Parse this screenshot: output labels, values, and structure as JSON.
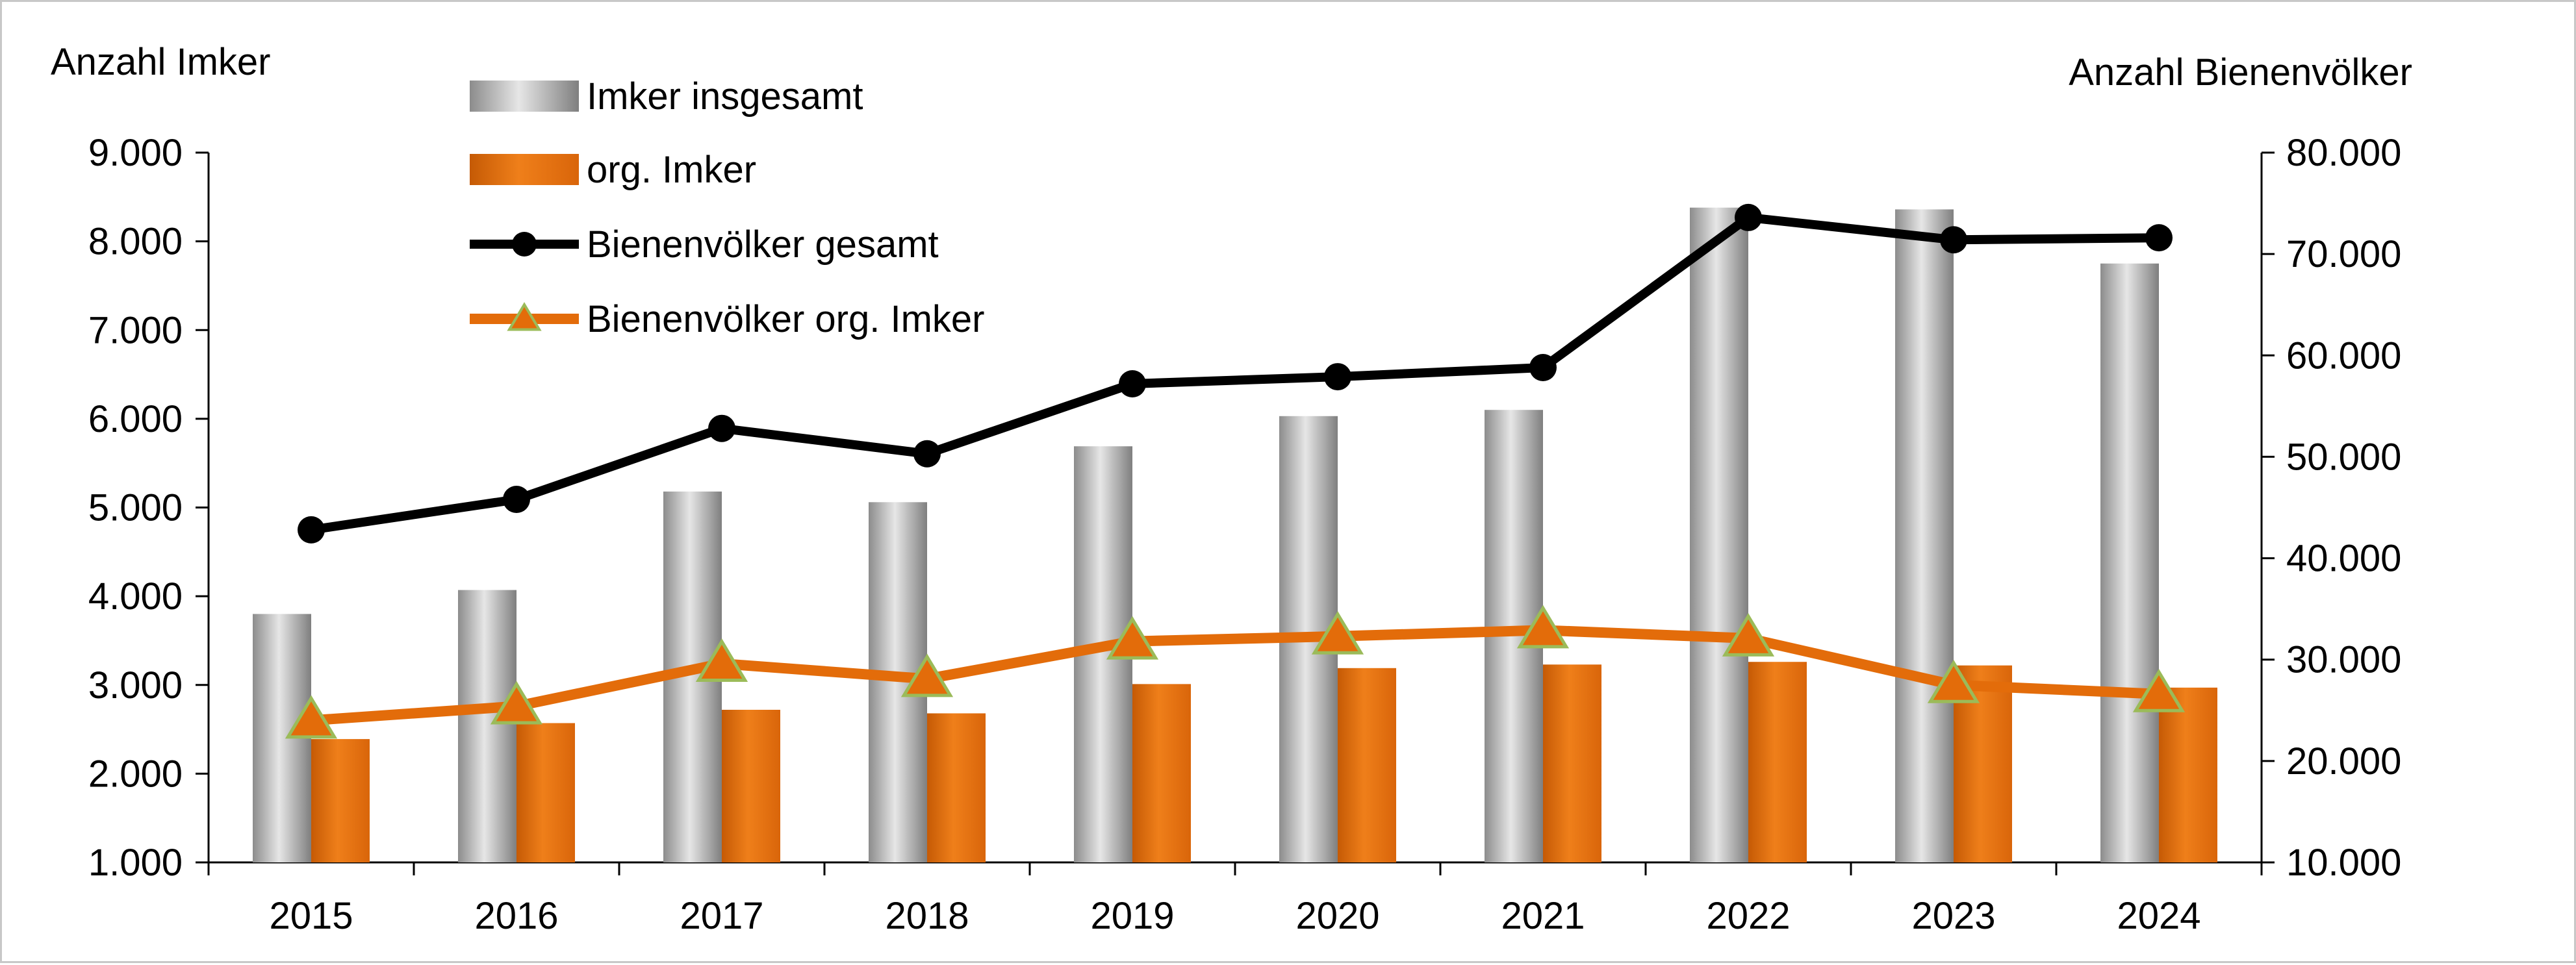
{
  "chart_data": {
    "type": "bar",
    "categories": [
      "2015",
      "2016",
      "2017",
      "2018",
      "2019",
      "2020",
      "2021",
      "2022",
      "2023",
      "2024"
    ],
    "ylabel_left": "Anzahl Imker",
    "ylabel_right": "Anzahl Bienenvölker",
    "ylim_left": [
      1000,
      9000
    ],
    "ylim_right": [
      10000,
      80000
    ],
    "yticks_left": [
      "1.000",
      "2.000",
      "3.000",
      "4.000",
      "5.000",
      "6.000",
      "7.000",
      "8.000",
      "9.000"
    ],
    "yticks_right": [
      "10.000",
      "20.000",
      "30.000",
      "40.000",
      "50.000",
      "60.000",
      "70.000",
      "80.000"
    ],
    "series": [
      {
        "name": "Imker insgesamt",
        "kind": "bar",
        "axis": "left",
        "color": "#a6a6a6",
        "values": [
          3800,
          4070,
          5180,
          5060,
          5690,
          6030,
          6100,
          8380,
          8360,
          7750
        ]
      },
      {
        "name": "org. Imker",
        "kind": "bar",
        "axis": "left",
        "color": "#e36c0a",
        "values": [
          2390,
          2570,
          2720,
          2680,
          3010,
          3190,
          3230,
          3260,
          3220,
          2970
        ]
      },
      {
        "name": "Bienenvölker gesamt",
        "kind": "line",
        "axis": "right",
        "color": "#000000",
        "marker": "circle",
        "values": [
          42800,
          45800,
          52800,
          50300,
          57200,
          57900,
          58800,
          73600,
          71400,
          71600
        ]
      },
      {
        "name": "Bienenvölker org. Imker",
        "kind": "line",
        "axis": "right",
        "color": "#e36c0a",
        "marker": "triangle",
        "marker_color": "#9bbb59",
        "values": [
          24000,
          25400,
          29600,
          28100,
          31800,
          32300,
          32900,
          32100,
          27500,
          26600
        ]
      }
    ],
    "legend_position": "top-left",
    "grid": false
  }
}
